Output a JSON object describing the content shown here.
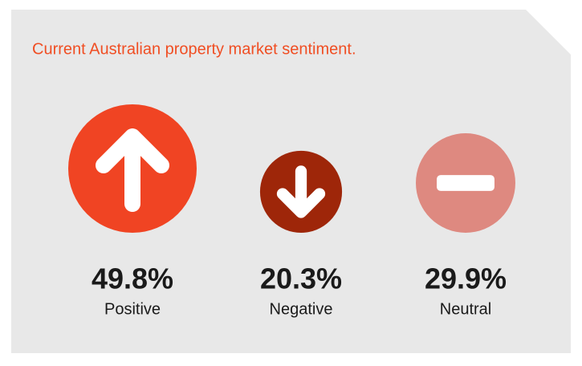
{
  "chart_data": {
    "type": "bubble",
    "title": "Current Australian property market sentiment.",
    "categories": [
      "Positive",
      "Negative",
      "Neutral"
    ],
    "values": [
      49.8,
      20.3,
      29.9
    ],
    "value_labels": [
      "49.8%",
      "20.3%",
      "29.9%"
    ],
    "colors": [
      "#f04423",
      "#9e2609",
      "#de8980"
    ]
  }
}
